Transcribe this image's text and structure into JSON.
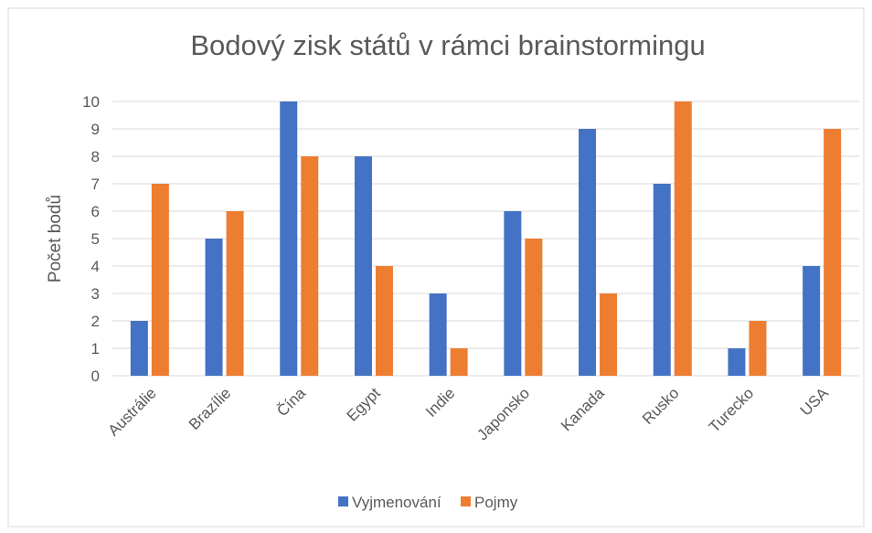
{
  "chart_data": {
    "type": "bar",
    "title": "Bodový zisk států v rámci brainstormingu",
    "y_label": "Počet bodů",
    "categories": [
      "Austrálie",
      "Brazílie",
      "Čína",
      "Egypt",
      "Indie",
      "Japonsko",
      "Kanada",
      "Rusko",
      "Turecko",
      "USA"
    ],
    "series": [
      {
        "name": "Vyjmenování",
        "color": "#4472c4",
        "values": [
          2,
          5,
          10,
          8,
          3,
          6,
          9,
          7,
          1,
          4
        ]
      },
      {
        "name": "Pojmy",
        "color": "#ed7d31",
        "values": [
          7,
          6,
          8,
          4,
          1,
          5,
          3,
          10,
          2,
          9
        ]
      }
    ],
    "ylim": [
      0,
      10
    ],
    "yticks": [
      0,
      1,
      2,
      3,
      4,
      5,
      6,
      7,
      8,
      9,
      10
    ],
    "grid": true,
    "legend": "bottom"
  }
}
